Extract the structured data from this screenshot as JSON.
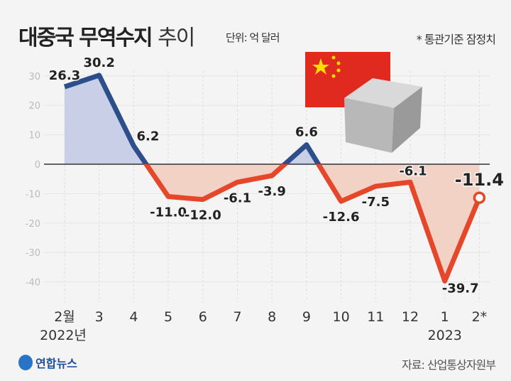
{
  "header": {
    "title_bold": "대중국 무역수지",
    "title_light": "추이",
    "unit": "단위: 억 달러",
    "note": "* 통관기준 잠정치"
  },
  "footer": {
    "source": "자료: 산업통상자원부",
    "logo": "연합뉴스"
  },
  "colors": {
    "positive_line": "#2c4f8c",
    "negative_line": "#e5472b",
    "positive_fill": "#c8cfe6",
    "negative_fill": "#f3d2c6"
  },
  "chart_data": {
    "type": "line",
    "title": "대중국 무역수지 추이",
    "ylabel": "억 달러",
    "categories": [
      "2월",
      "3",
      "4",
      "5",
      "6",
      "7",
      "8",
      "9",
      "10",
      "11",
      "12",
      "1",
      "2*"
    ],
    "year_labels": [
      {
        "index": 0,
        "label": "2022년"
      },
      {
        "index": 11,
        "label": "2023"
      }
    ],
    "values": [
      26.3,
      30.2,
      6.2,
      -11.0,
      -12.0,
      -6.1,
      -3.9,
      6.6,
      -12.6,
      -7.5,
      -6.1,
      -39.7,
      -11.4
    ],
    "data_labels": [
      "26.3",
      "30.2",
      "6.2",
      "-11.0",
      "-12.0",
      "-6.1",
      "-3.9",
      "6.6",
      "-12.6",
      "-7.5",
      "-6.1",
      "-39.7",
      "-11.4"
    ],
    "yticks": [
      30,
      20,
      10,
      0,
      -10,
      -20,
      -30,
      -40
    ],
    "ylim": [
      -40,
      30
    ]
  }
}
